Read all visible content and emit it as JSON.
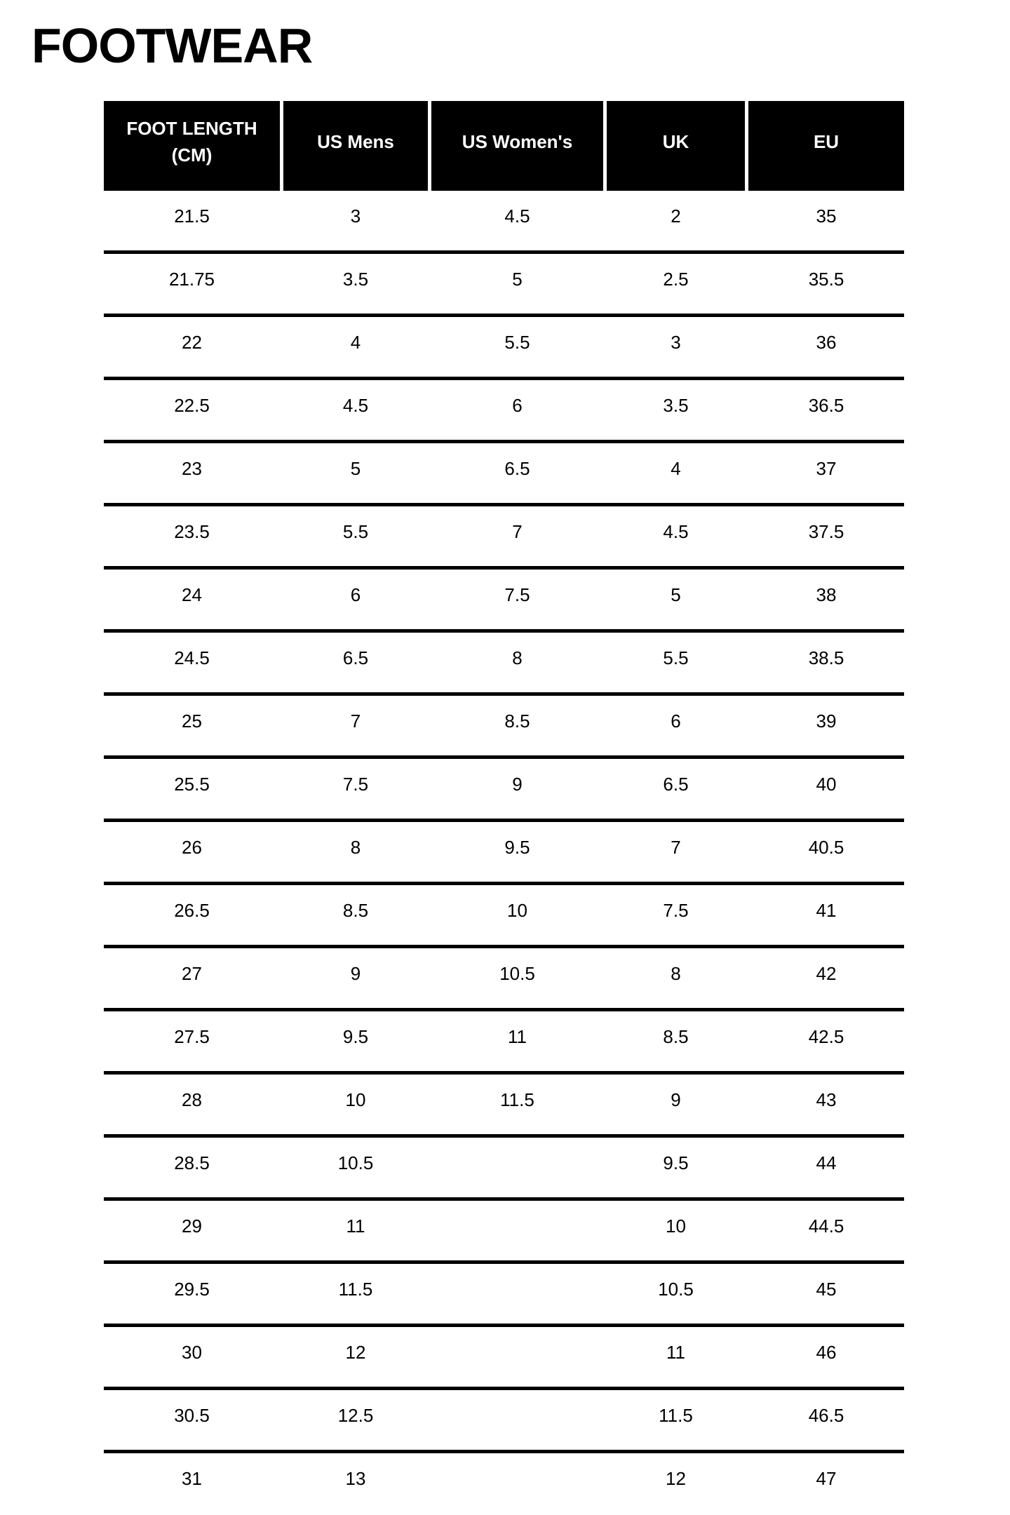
{
  "page": {
    "title": "FOOTWEAR"
  },
  "table": {
    "columns": [
      "FOOT LENGTH (CM)",
      "US Mens",
      "US Women's",
      "UK",
      "EU"
    ],
    "rows": [
      [
        "21.5",
        "3",
        "4.5",
        "2",
        "35"
      ],
      [
        "21.75",
        "3.5",
        "5",
        "2.5",
        "35.5"
      ],
      [
        "22",
        "4",
        "5.5",
        "3",
        "36"
      ],
      [
        "22.5",
        "4.5",
        "6",
        "3.5",
        "36.5"
      ],
      [
        "23",
        "5",
        "6.5",
        "4",
        "37"
      ],
      [
        "23.5",
        "5.5",
        "7",
        "4.5",
        "37.5"
      ],
      [
        "24",
        "6",
        "7.5",
        "5",
        "38"
      ],
      [
        "24.5",
        "6.5",
        "8",
        "5.5",
        "38.5"
      ],
      [
        "25",
        "7",
        "8.5",
        "6",
        "39"
      ],
      [
        "25.5",
        "7.5",
        "9",
        "6.5",
        "40"
      ],
      [
        "26",
        "8",
        "9.5",
        "7",
        "40.5"
      ],
      [
        "26.5",
        "8.5",
        "10",
        "7.5",
        "41"
      ],
      [
        "27",
        "9",
        "10.5",
        "8",
        "42"
      ],
      [
        "27.5",
        "9.5",
        "11",
        "8.5",
        "42.5"
      ],
      [
        "28",
        "10",
        "11.5",
        "9",
        "43"
      ],
      [
        "28.5",
        "10.5",
        "",
        "9.5",
        "44"
      ],
      [
        "29",
        "11",
        "",
        "10",
        "44.5"
      ],
      [
        "29.5",
        "11.5",
        "",
        "10.5",
        "45"
      ],
      [
        "30",
        "12",
        "",
        "11",
        "46"
      ],
      [
        "30.5",
        "12.5",
        "",
        "11.5",
        "46.5"
      ],
      [
        "31",
        "13",
        "",
        "12",
        "47"
      ]
    ]
  },
  "colors": {
    "page_bg": "#ffffff",
    "header_bg": "#000000",
    "header_text": "#ffffff",
    "body_text": "#000000",
    "divider": "#000000"
  }
}
